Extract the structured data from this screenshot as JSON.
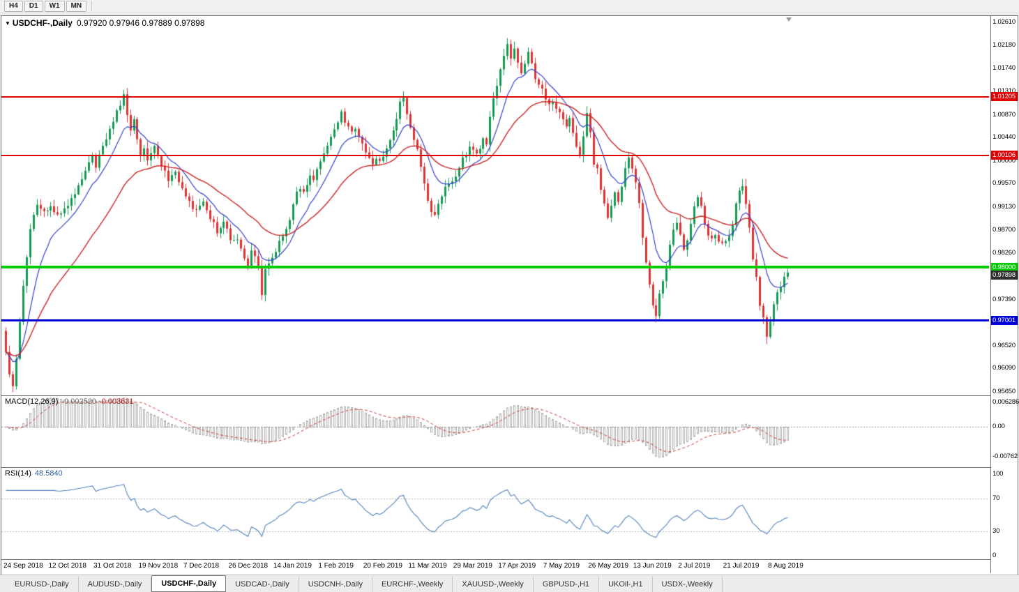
{
  "toolbar": {
    "timeframes": [
      "H4",
      "D1",
      "W1",
      "MN"
    ]
  },
  "window_title": {
    "dropdown_icon": "▼",
    "symbol": "USDCHF-,Daily",
    "quote": "0.97920 0.97946 0.97889 0.97898"
  },
  "colors": {
    "candle_up": "#149a52",
    "candle_down": "#dd3333",
    "ma_fast": "#3340cc",
    "ma_slow": "#cc2222",
    "macd_histogram": "#b0b0b0",
    "macd_signal": "#cc3333",
    "rsi_line": "#4f81bd",
    "hline_red": "#e00000",
    "hline_green": "#00cc00",
    "hline_blue": "#0000d8",
    "current_price_bg": "#2e2e2e",
    "tag_text": "#ffffff"
  },
  "chart_data": {
    "type": "candlestick",
    "symbol": "USDCHF",
    "timeframe": "Daily",
    "quote": {
      "open": 0.9792,
      "high": 0.97946,
      "low": 0.97889,
      "close": 0.97898
    },
    "price_axis": {
      "max": 1.0261,
      "min": 0.9565,
      "labels": [
        "1.02610",
        "1.02180",
        "1.01740",
        "1.01310",
        "1.00870",
        "1.00440",
        "1.00000",
        "0.99570",
        "0.99130",
        "0.98700",
        "0.98260",
        "0.97820",
        "0.97390",
        "0.96950",
        "0.96520",
        "0.96090",
        "0.95650"
      ]
    },
    "x_labels": [
      "24 Sep 2018",
      "12 Oct 2018",
      "31 Oct 2018",
      "19 Nov 2018",
      "7 Dec 2018",
      "26 Dec 2018",
      "14 Jan 2019",
      "1 Feb 2019",
      "20 Feb 2019",
      "11 Mar 2019",
      "29 Mar 2019",
      "17 Apr 2019",
      "7 May 2019",
      "26 May 2019",
      "13 Jun 2019",
      "2 Jul 2019",
      "21 Jul 2019",
      "8 Aug 2019"
    ],
    "bars_per_label": 13,
    "bar_count": 227,
    "hlines": [
      {
        "price": 1.01205,
        "label": "1.01205",
        "color_key": "hline_red",
        "thickness": 2
      },
      {
        "price": 1.00106,
        "label": "1.00106",
        "color_key": "hline_red",
        "thickness": 2
      },
      {
        "price": 0.98,
        "label": "0.98000",
        "color_key": "hline_green",
        "thickness": 4
      },
      {
        "price": 0.97001,
        "label": "0.97001",
        "color_key": "hline_blue",
        "thickness": 3
      }
    ],
    "current_price": {
      "value": 0.97898,
      "label": "0.97898"
    },
    "moving_averages": [
      {
        "period": 10,
        "color_key": "ma_fast"
      },
      {
        "period": 30,
        "color_key": "ma_slow"
      }
    ],
    "indicators": {
      "macd": {
        "label": "MACD(12,26,9)",
        "value_main": "-0.002520",
        "value_signal": "-0.003631",
        "fast": 12,
        "slow": 26,
        "signal": 9,
        "scale": [
          {
            "label": "0.006286",
            "value": 0.006286
          },
          {
            "label": "0.00",
            "value": 0
          },
          {
            "label": "-0.00762",
            "value": -0.00762
          }
        ]
      },
      "rsi": {
        "label": "RSI(14)",
        "value": "48.5840",
        "period": 14,
        "levels": [
          70,
          30
        ],
        "scale": [
          {
            "label": "100",
            "value": 100
          },
          {
            "label": "70",
            "value": 70
          },
          {
            "label": "30",
            "value": 30
          },
          {
            "label": "0",
            "value": 0
          }
        ]
      }
    },
    "anchors": [
      [
        0,
        0.964
      ],
      [
        1,
        0.96
      ],
      [
        2,
        0.9572
      ],
      [
        3,
        0.963
      ],
      [
        4,
        0.97
      ],
      [
        5,
        0.9762
      ],
      [
        6,
        0.982
      ],
      [
        7,
        0.9868
      ],
      [
        8,
        0.99
      ],
      [
        9,
        0.9915
      ],
      [
        11,
        0.9902
      ],
      [
        13,
        0.9915
      ],
      [
        15,
        0.9898
      ],
      [
        17,
        0.991
      ],
      [
        19,
        0.993
      ],
      [
        21,
        0.995
      ],
      [
        23,
        0.9985
      ],
      [
        25,
        1.0005
      ],
      [
        26,
        0.9992
      ],
      [
        27,
        1.001
      ],
      [
        29,
        1.004
      ],
      [
        31,
        1.0075
      ],
      [
        33,
        1.0108
      ],
      [
        34,
        1.0125
      ],
      [
        35,
        1.0085
      ],
      [
        36,
        1.0055
      ],
      [
        37,
        1.0075
      ],
      [
        38,
        1.004
      ],
      [
        39,
        1.001
      ],
      [
        40,
        1.0025
      ],
      [
        41,
        0.9998
      ],
      [
        43,
        1.0032
      ],
      [
        45,
        0.999
      ],
      [
        47,
        0.9965
      ],
      [
        49,
        0.9975
      ],
      [
        51,
        0.995
      ],
      [
        53,
        0.992
      ],
      [
        55,
        0.9905
      ],
      [
        57,
        0.9925
      ],
      [
        59,
        0.9892
      ],
      [
        61,
        0.9868
      ],
      [
        63,
        0.9885
      ],
      [
        65,
        0.9855
      ],
      [
        67,
        0.9848
      ],
      [
        69,
        0.982
      ],
      [
        70,
        0.9805
      ],
      [
        71,
        0.9835
      ],
      [
        73,
        0.98
      ],
      [
        74,
        0.9745
      ],
      [
        75,
        0.9795
      ],
      [
        77,
        0.9815
      ],
      [
        79,
        0.985
      ],
      [
        81,
        0.9868
      ],
      [
        82,
        0.989
      ],
      [
        83,
        0.992
      ],
      [
        84,
        0.9945
      ],
      [
        85,
        0.9952
      ],
      [
        86,
        0.994
      ],
      [
        87,
        0.9958
      ],
      [
        88,
        0.9972
      ],
      [
        89,
        0.996
      ],
      [
        90,
        0.9985
      ],
      [
        92,
        1.0012
      ],
      [
        94,
        1.0045
      ],
      [
        96,
        1.007
      ],
      [
        97,
        1.009
      ],
      [
        98,
        1.0075
      ],
      [
        99,
        1.006
      ],
      [
        100,
        1.0052
      ],
      [
        101,
        1.0062
      ],
      [
        102,
        1.0045
      ],
      [
        103,
        1.0032
      ],
      [
        104,
        1.0018
      ],
      [
        105,
        1.0002
      ],
      [
        106,
        0.9995
      ],
      [
        107,
        1.0008
      ],
      [
        108,
        1.0
      ],
      [
        109,
        1.0012
      ],
      [
        110,
        1.002
      ],
      [
        111,
        1.004
      ],
      [
        112,
        1.006
      ],
      [
        113,
        1.0082
      ],
      [
        114,
        1.0108
      ],
      [
        115,
        1.0118
      ],
      [
        116,
        1.0088
      ],
      [
        117,
        1.006
      ],
      [
        118,
        1.0035
      ],
      [
        119,
        1.0018
      ],
      [
        120,
        0.9992
      ],
      [
        121,
        0.996
      ],
      [
        122,
        0.9928
      ],
      [
        123,
        0.9905
      ],
      [
        124,
        0.9898
      ],
      [
        125,
        0.9915
      ],
      [
        126,
        0.9932
      ],
      [
        127,
        0.9948
      ],
      [
        128,
        0.9958
      ],
      [
        129,
        0.9965
      ],
      [
        130,
        0.9972
      ],
      [
        131,
        0.9988
      ],
      [
        132,
        1.0002
      ],
      [
        133,
        1.0015
      ],
      [
        134,
        1.0028
      ],
      [
        135,
        1.002
      ],
      [
        136,
        1.0012
      ],
      [
        137,
        1.0025
      ],
      [
        138,
        1.0042
      ],
      [
        139,
        1.003
      ],
      [
        140,
        1.008
      ],
      [
        141,
        1.012
      ],
      [
        142,
        1.0145
      ],
      [
        143,
        1.0172
      ],
      [
        144,
        1.0198
      ],
      [
        145,
        1.0218
      ],
      [
        146,
        1.0196
      ],
      [
        147,
        1.0212
      ],
      [
        148,
        1.0182
      ],
      [
        149,
        1.0162
      ],
      [
        150,
        1.0178
      ],
      [
        151,
        1.0205
      ],
      [
        152,
        1.0186
      ],
      [
        153,
        1.0158
      ],
      [
        154,
        1.0142
      ],
      [
        155,
        1.0132
      ],
      [
        156,
        1.0116
      ],
      [
        157,
        1.0105
      ],
      [
        158,
        1.0112
      ],
      [
        159,
        1.0098
      ],
      [
        160,
        1.0092
      ],
      [
        161,
        1.0078
      ],
      [
        162,
        1.0066
      ],
      [
        163,
        1.008
      ],
      [
        164,
        1.0052
      ],
      [
        165,
        1.0028
      ],
      [
        166,
        1.0008
      ],
      [
        167,
        1.0042
      ],
      [
        168,
        1.009
      ],
      [
        169,
        1.0052
      ],
      [
        170,
        0.9996
      ],
      [
        171,
        0.9982
      ],
      [
        172,
        0.9942
      ],
      [
        173,
        0.9916
      ],
      [
        174,
        0.9896
      ],
      [
        175,
        0.9914
      ],
      [
        176,
        0.9942
      ],
      [
        177,
        0.9922
      ],
      [
        178,
        0.9954
      ],
      [
        179,
        0.9988
      ],
      [
        180,
        1.0002
      ],
      [
        181,
        0.9986
      ],
      [
        182,
        0.9962
      ],
      [
        183,
        0.9922
      ],
      [
        184,
        0.9852
      ],
      [
        185,
        0.9805
      ],
      [
        186,
        0.9765
      ],
      [
        187,
        0.9732
      ],
      [
        188,
        0.9712
      ],
      [
        189,
        0.975
      ],
      [
        190,
        0.9778
      ],
      [
        191,
        0.9805
      ],
      [
        192,
        0.9842
      ],
      [
        193,
        0.987
      ],
      [
        194,
        0.9882
      ],
      [
        195,
        0.986
      ],
      [
        196,
        0.983
      ],
      [
        197,
        0.9852
      ],
      [
        198,
        0.9882
      ],
      [
        199,
        0.991
      ],
      [
        200,
        0.993
      ],
      [
        201,
        0.9912
      ],
      [
        202,
        0.9882
      ],
      [
        203,
        0.9856
      ],
      [
        204,
        0.985
      ],
      [
        205,
        0.986
      ],
      [
        206,
        0.9846
      ],
      [
        207,
        0.9842
      ],
      [
        208,
        0.9854
      ],
      [
        209,
        0.9862
      ],
      [
        210,
        0.9882
      ],
      [
        211,
        0.9922
      ],
      [
        212,
        0.9942
      ],
      [
        213,
        0.9954
      ],
      [
        214,
        0.9922
      ],
      [
        215,
        0.9872
      ],
      [
        216,
        0.9818
      ],
      [
        217,
        0.9778
      ],
      [
        218,
        0.9732
      ],
      [
        219,
        0.9706
      ],
      [
        220,
        0.9672
      ],
      [
        221,
        0.9702
      ],
      [
        222,
        0.9732
      ],
      [
        223,
        0.9748
      ],
      [
        224,
        0.9762
      ],
      [
        225,
        0.9778
      ],
      [
        226,
        0.97898
      ]
    ]
  },
  "tabs": [
    {
      "label": "EURUSD-,Daily",
      "active": false
    },
    {
      "label": "AUDUSD-,Daily",
      "active": false
    },
    {
      "label": "USDCHF-,Daily",
      "active": true
    },
    {
      "label": "USDCAD-,Daily",
      "active": false
    },
    {
      "label": "USDCNH-,Daily",
      "active": false
    },
    {
      "label": "EURCHF-,Weekly",
      "active": false
    },
    {
      "label": "XAUUSD-,Weekly",
      "active": false
    },
    {
      "label": "GBPUSD-,H1",
      "active": false
    },
    {
      "label": "UKOil-,H1",
      "active": false
    },
    {
      "label": "USDX-,Weekly",
      "active": false
    }
  ]
}
